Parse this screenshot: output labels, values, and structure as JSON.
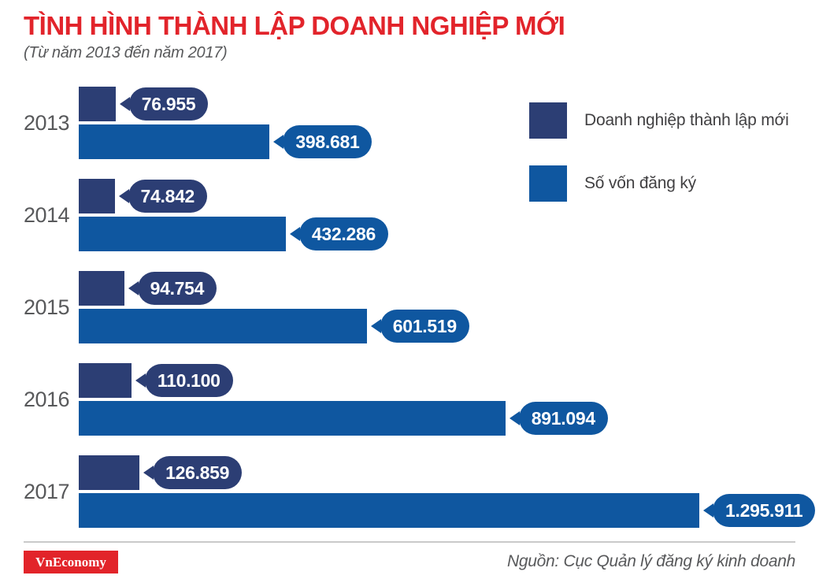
{
  "title": "TÌNH HÌNH THÀNH LẬP DOANH NGHIỆP MỚI",
  "subtitle": "(Từ năm 2013 đến năm 2017)",
  "colors": {
    "title_red": "#e2242b",
    "navy": "#2c3e74",
    "blue": "#0f57a0",
    "gray_text": "#58595b",
    "logo_red": "#e2242a"
  },
  "legend": [
    {
      "label": "Doanh nghiệp thành lập mới",
      "color": "#2c3e74"
    },
    {
      "label": "Số vốn đăng ký",
      "color": "#0f57a0"
    }
  ],
  "chart_data": {
    "type": "bar",
    "orientation": "horizontal",
    "categories": [
      "2013",
      "2014",
      "2015",
      "2016",
      "2017"
    ],
    "series": [
      {
        "name": "Doanh nghiệp thành lập mới",
        "color": "#2c3e74",
        "values": [
          76955,
          74842,
          94754,
          110100,
          126859
        ],
        "labels": [
          "76.955",
          "74.842",
          "94.754",
          "110.100",
          "126.859"
        ]
      },
      {
        "name": "Số vốn đăng ký",
        "color": "#0f57a0",
        "values": [
          398681,
          432286,
          601519,
          891094,
          1295911
        ],
        "labels": [
          "398.681",
          "432.286",
          "601.519",
          "891.094",
          "1.295.911"
        ]
      }
    ],
    "xlim": [
      0,
      1295911
    ],
    "grid": false,
    "legend_position": "top-right"
  },
  "footer": {
    "logo": "VnEconomy",
    "source": "Nguồn: Cục Quản lý đăng ký kinh doanh"
  }
}
